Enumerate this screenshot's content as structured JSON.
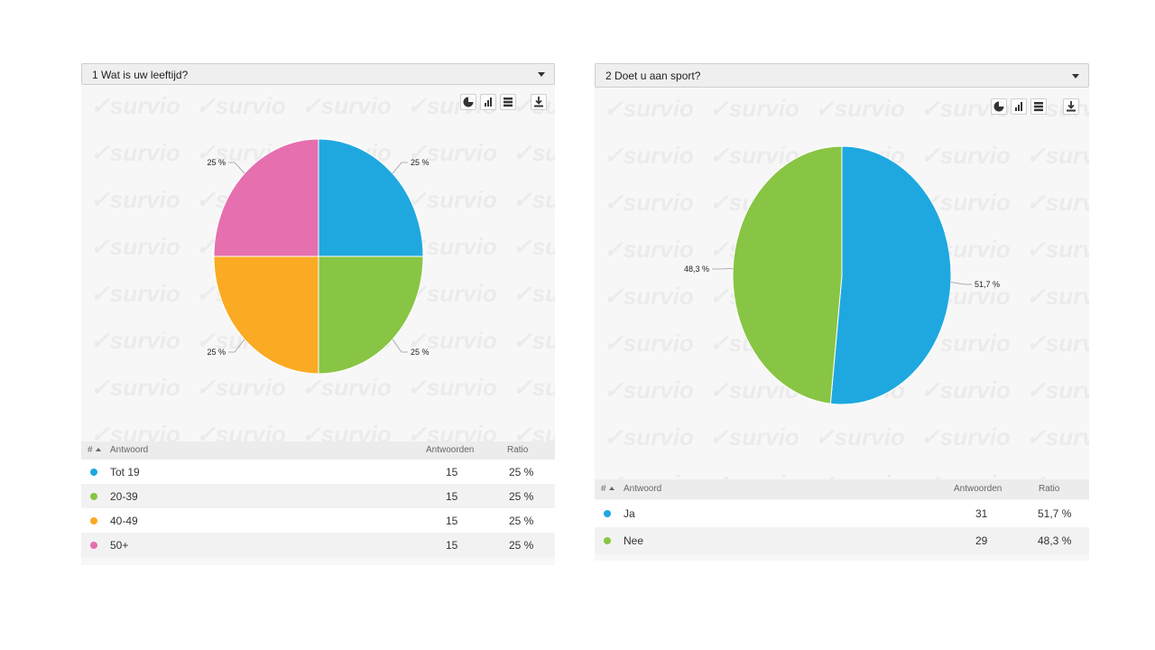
{
  "colors": {
    "blue": "#1fa8e0",
    "green": "#88c544",
    "orange": "#fbaa24",
    "pink": "#e56faf"
  },
  "watermark_text": "survio",
  "table_headers": {
    "num": "#",
    "answer": "Antwoord",
    "count": "Antwoorden",
    "ratio": "Ratio"
  },
  "panels": [
    {
      "title": "1 Wat is uw leeftijd?",
      "rows": [
        {
          "label": "Tot 19",
          "count": "15",
          "ratio": "25 %",
          "color": "#1fa8e0"
        },
        {
          "label": "20-39",
          "count": "15",
          "ratio": "25 %",
          "color": "#88c544"
        },
        {
          "label": "40-49",
          "count": "15",
          "ratio": "25 %",
          "color": "#fbaa24"
        },
        {
          "label": "50+",
          "count": "15",
          "ratio": "25 %",
          "color": "#e56faf"
        }
      ]
    },
    {
      "title": "2 Doet u aan sport?",
      "rows": [
        {
          "label": "Ja",
          "count": "31",
          "ratio": "51,7 %",
          "color": "#1fa8e0"
        },
        {
          "label": "Nee",
          "count": "29",
          "ratio": "48,3 %",
          "color": "#88c544"
        }
      ]
    }
  ],
  "chart_data": [
    {
      "type": "pie",
      "title": "1 Wat is uw leeftijd?",
      "categories": [
        "Tot 19",
        "20-39",
        "40-49",
        "50+"
      ],
      "values": [
        15,
        15,
        15,
        15
      ],
      "labels": [
        "25 %",
        "25 %",
        "25 %",
        "25 %"
      ],
      "colors": [
        "#1fa8e0",
        "#88c544",
        "#fbaa24",
        "#e56faf"
      ]
    },
    {
      "type": "pie",
      "title": "2 Doet u aan sport?",
      "categories": [
        "Ja",
        "Nee"
      ],
      "values": [
        31,
        29
      ],
      "labels": [
        "51,7 %",
        "48,3 %"
      ],
      "colors": [
        "#1fa8e0",
        "#88c544"
      ]
    }
  ]
}
